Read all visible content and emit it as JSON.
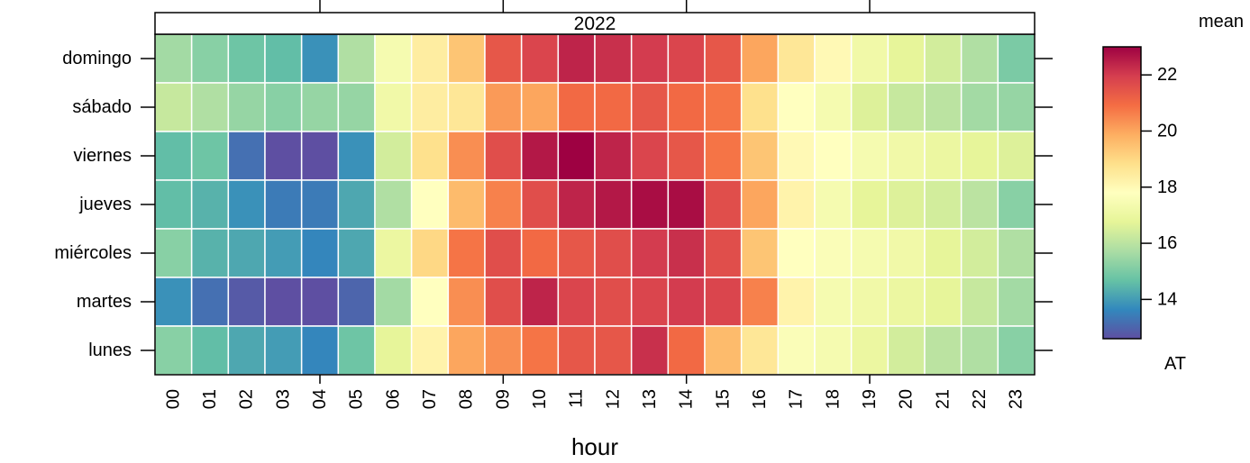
{
  "chart_data": {
    "type": "heatmap",
    "panel_title": "2022",
    "xlabel": "hour",
    "ylabel": "",
    "x_categories": [
      "00",
      "01",
      "02",
      "03",
      "04",
      "05",
      "06",
      "07",
      "08",
      "09",
      "10",
      "11",
      "12",
      "13",
      "14",
      "15",
      "16",
      "17",
      "18",
      "19",
      "20",
      "21",
      "22",
      "23"
    ],
    "y_categories": [
      "domingo",
      "sábado",
      "viernes",
      "jueves",
      "miércoles",
      "martes",
      "lunes"
    ],
    "values": [
      [
        15.6,
        15.2,
        14.8,
        14.6,
        13.8,
        15.8,
        17.4,
        18.4,
        19.4,
        21.4,
        21.8,
        22.4,
        22.2,
        22.0,
        21.8,
        21.4,
        20.0,
        18.6,
        18.0,
        17.2,
        16.8,
        16.4,
        15.8,
        15.0
      ],
      [
        16.2,
        15.8,
        15.4,
        15.2,
        15.4,
        15.4,
        17.2,
        18.4,
        18.6,
        20.2,
        20.0,
        21.0,
        21.0,
        21.4,
        21.0,
        20.8,
        18.8,
        17.8,
        17.4,
        16.6,
        16.2,
        16.0,
        15.6,
        15.4
      ],
      [
        14.6,
        14.8,
        13.2,
        12.6,
        12.6,
        13.8,
        16.4,
        18.8,
        20.4,
        21.6,
        22.6,
        23.0,
        22.4,
        21.8,
        21.4,
        20.8,
        19.4,
        18.0,
        17.8,
        17.4,
        17.2,
        17.0,
        16.8,
        16.6
      ],
      [
        14.6,
        14.4,
        13.8,
        13.4,
        13.4,
        14.2,
        15.8,
        17.8,
        19.6,
        20.6,
        21.6,
        22.4,
        22.6,
        22.8,
        22.8,
        21.6,
        20.0,
        18.2,
        17.4,
        16.8,
        16.6,
        16.4,
        16.0,
        15.2
      ],
      [
        15.2,
        14.4,
        14.2,
        14.0,
        13.6,
        14.2,
        17.0,
        19.0,
        20.8,
        21.6,
        21.0,
        21.4,
        21.6,
        22.0,
        22.2,
        21.6,
        19.4,
        17.8,
        17.6,
        17.4,
        17.2,
        16.8,
        16.4,
        15.8
      ],
      [
        13.8,
        13.2,
        12.8,
        12.6,
        12.2,
        13.0,
        15.6,
        17.8,
        20.4,
        21.6,
        22.4,
        21.8,
        21.6,
        21.8,
        22.0,
        21.8,
        20.6,
        18.2,
        17.4,
        17.2,
        17.0,
        16.8,
        16.2,
        15.6
      ],
      [
        15.2,
        14.6,
        14.2,
        14.0,
        13.6,
        14.8,
        16.8,
        18.2,
        20.0,
        20.4,
        20.8,
        21.4,
        21.4,
        22.2,
        21.0,
        19.6,
        18.6,
        17.6,
        17.4,
        17.0,
        16.4,
        16.0,
        15.8,
        15.2
      ]
    ],
    "color_scale": {
      "title": "mean",
      "subtitle": "AT",
      "min": 12.6,
      "max": 23.0,
      "ticks": [
        14,
        16,
        18,
        20,
        22
      ],
      "palette": [
        "#5E4FA2",
        "#3288BD",
        "#66C2A5",
        "#ABDDA4",
        "#E6F598",
        "#FFFFBF",
        "#FEE08B",
        "#FDAE61",
        "#F46D43",
        "#D53E4F",
        "#9E0142"
      ]
    }
  }
}
